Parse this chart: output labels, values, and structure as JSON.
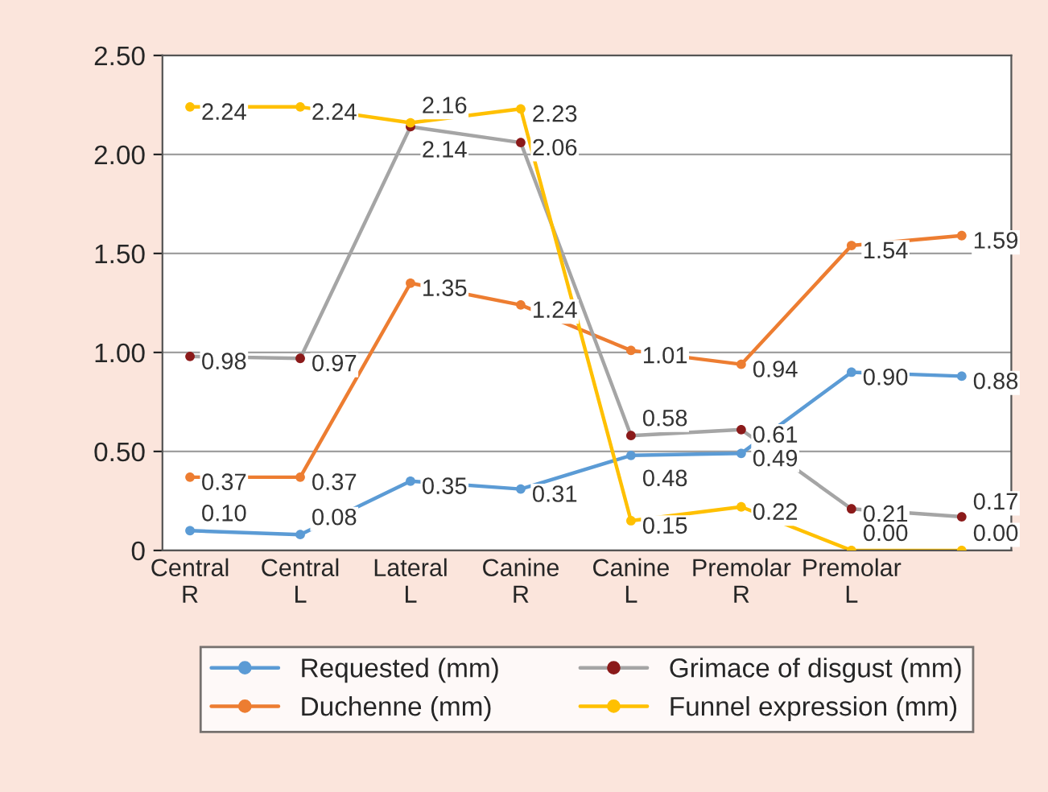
{
  "chart_data": {
    "type": "line",
    "categories": [
      "Central\nR",
      "Central\nL",
      "Lateral\nL",
      "Canine\nR",
      "Canine\nL",
      "Premolar\nR",
      "Premolar\nL",
      null
    ],
    "series": [
      {
        "name": "Requested (mm)",
        "color": "#5b9bd5",
        "values": [
          0.1,
          0.08,
          0.35,
          0.31,
          0.48,
          0.49,
          0.9,
          0.88
        ],
        "value_labels": [
          "0.10",
          "0.08",
          "0.35",
          "0.31",
          "0.48",
          "0.49",
          "0.90",
          "0.88"
        ]
      },
      {
        "name": "Duchenne (mm)",
        "color": "#ed7d31",
        "values": [
          0.37,
          0.37,
          1.35,
          1.24,
          1.01,
          0.94,
          1.54,
          1.59
        ],
        "value_labels": [
          "0.37",
          "0.37",
          "1.35",
          "1.24",
          "1.01",
          "0.94",
          "1.54",
          "1.59"
        ]
      },
      {
        "name": "Grimace of disgust (mm)",
        "color": "#a5a5a5",
        "colors": [
          "#8b1a1a",
          "#8b1a1a",
          "#8b1a1a",
          "#8b1a1a",
          "#8b1a1a",
          "#8b1a1a",
          "#8b1a1a",
          "#8b1a1a"
        ],
        "values": [
          0.98,
          0.97,
          2.14,
          2.06,
          0.58,
          0.61,
          0.21,
          0.17
        ],
        "value_labels": [
          "0.98",
          "0.97",
          "2.14",
          "2.06",
          "0.58",
          "0.61",
          "0.21",
          "0.17"
        ]
      },
      {
        "name": "Funnel expression (mm)",
        "color": "#ffc000",
        "values": [
          2.24,
          2.24,
          2.16,
          2.23,
          0.15,
          0.22,
          0.0,
          0.0
        ],
        "value_labels": [
          "2.24",
          "2.24",
          "2.16",
          "2.23",
          "0.15",
          "0.22",
          "0.00",
          "0.00"
        ]
      }
    ],
    "ylim": [
      0,
      2.5
    ],
    "yticks": [
      {
        "value": 0,
        "label": "0"
      },
      {
        "value": 0.5,
        "label": "0.50"
      },
      {
        "value": 1,
        "label": "1.00"
      },
      {
        "value": 1.5,
        "label": "1.50"
      },
      {
        "value": 2,
        "label": "2.00"
      },
      {
        "value": 2.5,
        "label": "2.50"
      }
    ],
    "grid": "y",
    "legend": "bottom",
    "marker": "circle",
    "line_style": "solid"
  }
}
